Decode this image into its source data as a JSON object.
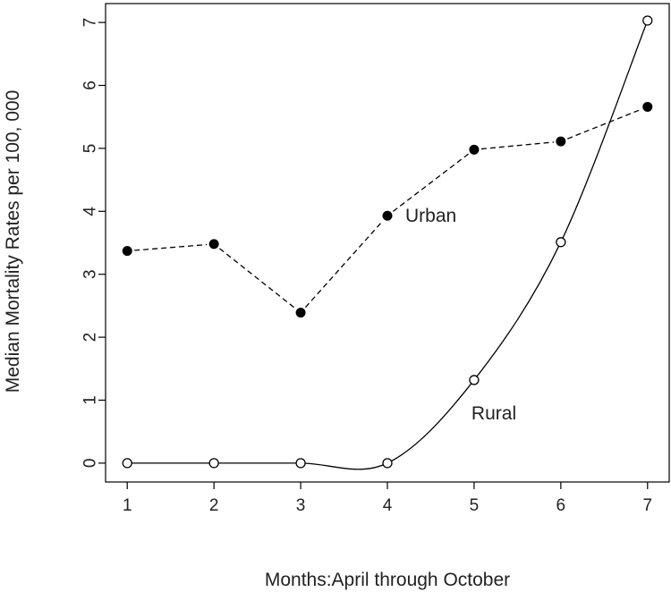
{
  "chart_data": {
    "type": "line",
    "title": "",
    "xlabel": "Months:April through October",
    "ylabel": "Median Mortality Rates per 100, 000",
    "x": [
      1,
      2,
      3,
      4,
      5,
      6,
      7
    ],
    "xlim": [
      0.75,
      7.25
    ],
    "ylim": [
      -0.3,
      7.3
    ],
    "xticks": [
      1,
      2,
      3,
      4,
      5,
      6,
      7
    ],
    "yticks": [
      0,
      1,
      2,
      3,
      4,
      5,
      6,
      7
    ],
    "grid": false,
    "legend": "none",
    "series": [
      {
        "name": "Urban",
        "values": [
          3.37,
          3.48,
          2.39,
          3.93,
          4.98,
          5.11,
          5.66
        ],
        "line_style": "dashed",
        "marker": "filled-circle",
        "color": "#000000",
        "label_near_x": 4
      },
      {
        "name": "Rural",
        "values": [
          0,
          0,
          0,
          0,
          1.32,
          3.51,
          7.03
        ],
        "line_style": "solid-smooth",
        "marker": "open-circle",
        "color": "#000000",
        "label_near_x": 5
      }
    ]
  }
}
